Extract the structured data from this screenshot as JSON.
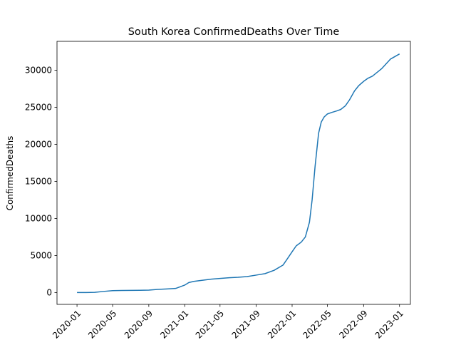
{
  "chart_data": {
    "type": "line",
    "title": "South Korea  ConfirmedDeaths Over Time",
    "xlabel": "",
    "ylabel": "ConfirmedDeaths",
    "x_ticks": [
      "2020-01",
      "2020-05",
      "2020-09",
      "2021-01",
      "2021-05",
      "2021-09",
      "2022-01",
      "2022-05",
      "2022-09",
      "2023-01"
    ],
    "y_ticks": [
      "0",
      "5000",
      "10000",
      "15000",
      "20000",
      "25000",
      "30000"
    ],
    "xlim": [
      "2019-10-25",
      "2023-02-07"
    ],
    "ylim": [
      -1600,
      33900
    ],
    "grid": false,
    "legend": "none",
    "series": [
      {
        "color": "#1f77b4",
        "x": [
          "2020-01-01",
          "2020-02-01",
          "2020-03-01",
          "2020-04-01",
          "2020-05-01",
          "2020-06-01",
          "2020-07-01",
          "2020-08-01",
          "2020-09-01",
          "2020-10-01",
          "2020-11-01",
          "2020-12-01",
          "2021-01-01",
          "2021-01-15",
          "2021-02-01",
          "2021-03-01",
          "2021-04-01",
          "2021-05-01",
          "2021-06-01",
          "2021-07-01",
          "2021-08-01",
          "2021-09-01",
          "2021-10-01",
          "2021-11-01",
          "2021-12-01",
          "2021-12-15",
          "2022-01-01",
          "2022-01-15",
          "2022-02-01",
          "2022-02-15",
          "2022-03-01",
          "2022-03-10",
          "2022-03-20",
          "2022-04-01",
          "2022-04-10",
          "2022-04-20",
          "2022-05-01",
          "2022-05-15",
          "2022-06-01",
          "2022-06-15",
          "2022-07-01",
          "2022-07-15",
          "2022-08-01",
          "2022-08-15",
          "2022-09-01",
          "2022-09-15",
          "2022-10-01",
          "2022-11-01",
          "2022-12-01",
          "2023-01-01"
        ],
        "y": [
          0,
          0,
          20,
          150,
          250,
          270,
          290,
          300,
          330,
          420,
          480,
          550,
          1000,
          1350,
          1500,
          1650,
          1800,
          1900,
          2000,
          2050,
          2150,
          2350,
          2550,
          3000,
          3700,
          4500,
          5500,
          6300,
          6800,
          7500,
          9500,
          12500,
          17000,
          21500,
          23000,
          23700,
          24100,
          24300,
          24500,
          24700,
          25200,
          26000,
          27200,
          27900,
          28500,
          28900,
          29200,
          30200,
          31500,
          32200
        ]
      }
    ]
  }
}
